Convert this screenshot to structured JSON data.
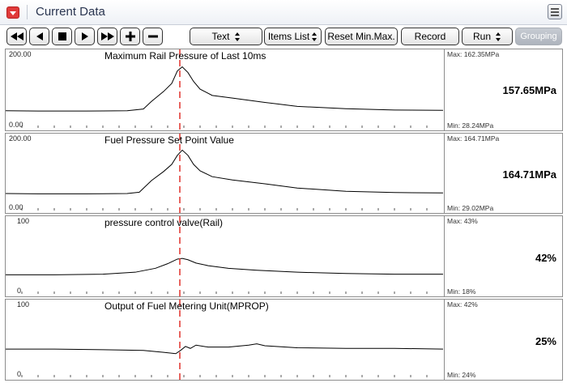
{
  "window": {
    "title": "Current Data"
  },
  "toolbar": {
    "text_select": "Text",
    "items_list": "Items List",
    "reset_minmax": "Reset Min.Max.",
    "record": "Record",
    "run_select": "Run",
    "grouping": "Grouping"
  },
  "colors": {
    "cursor": "#e0302a",
    "trace": "#000000",
    "disabled": "#b5bac2"
  },
  "panels": [
    {
      "title": "Maximum Rail Pressure of Last 10ms",
      "y_max_label": "200.00",
      "y_min_label": "0.00",
      "max_label": "Max: 162.35MPa",
      "min_label": "Min: 28.24MPa",
      "current": "157.65MPa"
    },
    {
      "title": "Fuel Pressure Set Point Value",
      "y_max_label": "200.00",
      "y_min_label": "0.00",
      "max_label": "Max: 164.71MPa",
      "min_label": "Min: 29.02MPa",
      "current": "164.71MPa"
    },
    {
      "title": "pressure control valve(Rail)",
      "y_max_label": "100",
      "y_min_label": "0",
      "max_label": "Max:   43%",
      "min_label": "Min:   18%",
      "current": "42%"
    },
    {
      "title": "Output of Fuel Metering Unit(MPROP)",
      "y_max_label": "100",
      "y_min_label": "0",
      "max_label": "Max:   42%",
      "min_label": "Min:   24%",
      "current": "25%"
    }
  ],
  "chart_data": [
    {
      "type": "line",
      "title": "Maximum Rail Pressure of Last 10ms",
      "ylim": [
        0,
        200
      ],
      "x": [
        0,
        40,
        100,
        150,
        170,
        180,
        195,
        205,
        212,
        218,
        225,
        232,
        240,
        255,
        280,
        320,
        360,
        420,
        480,
        540
      ],
      "values": [
        30,
        29,
        29,
        30,
        35,
        58,
        88,
        112,
        150,
        162,
        145,
        118,
        95,
        76,
        68,
        55,
        43,
        36,
        32,
        31
      ]
    },
    {
      "type": "line",
      "title": "Fuel Pressure Set Point Value",
      "ylim": [
        0,
        200
      ],
      "x": [
        0,
        40,
        100,
        150,
        165,
        180,
        195,
        205,
        212,
        218,
        225,
        232,
        240,
        255,
        280,
        320,
        360,
        420,
        480,
        540
      ],
      "values": [
        30,
        29,
        29,
        30,
        34,
        70,
        98,
        120,
        148,
        164,
        148,
        120,
        100,
        82,
        72,
        60,
        47,
        37,
        33,
        32
      ]
    },
    {
      "type": "line",
      "title": "pressure control valve(Rail)",
      "ylim": [
        0,
        100
      ],
      "x": [
        0,
        60,
        120,
        160,
        185,
        200,
        212,
        218,
        225,
        235,
        250,
        275,
        310,
        360,
        420,
        480,
        540
      ],
      "values": [
        18,
        18,
        19,
        22,
        28,
        35,
        42,
        43,
        41,
        36,
        32,
        28,
        25,
        22,
        20,
        19,
        19
      ]
    },
    {
      "type": "line",
      "title": "Output of Fuel Metering Unit(MPROP)",
      "ylim": [
        0,
        100
      ],
      "x": [
        0,
        60,
        120,
        170,
        195,
        210,
        216,
        222,
        228,
        235,
        250,
        275,
        300,
        310,
        320,
        360,
        420,
        480,
        540
      ],
      "values": [
        32,
        32,
        31,
        30,
        27,
        25,
        30,
        36,
        33,
        38,
        35,
        35,
        38,
        40,
        37,
        34,
        33,
        33,
        32
      ]
    }
  ]
}
